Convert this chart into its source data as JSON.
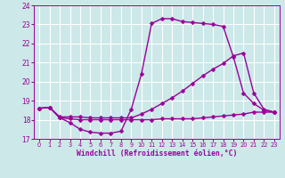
{
  "xlabel": "Windchill (Refroidissement éolien,°C)",
  "bg_color": "#cce8e8",
  "line_color": "#990099",
  "grid_color": "#ffffff",
  "xlim": [
    -0.5,
    23.5
  ],
  "ylim": [
    17,
    24
  ],
  "yticks": [
    17,
    18,
    19,
    20,
    21,
    22,
    23,
    24
  ],
  "xticks": [
    0,
    1,
    2,
    3,
    4,
    5,
    6,
    7,
    8,
    9,
    10,
    11,
    12,
    13,
    14,
    15,
    16,
    17,
    18,
    19,
    20,
    21,
    22,
    23
  ],
  "line1_x": [
    0,
    1,
    2,
    3,
    4,
    5,
    6,
    7,
    8,
    9,
    10,
    11,
    12,
    13,
    14,
    15,
    16,
    17,
    18,
    19,
    20,
    21,
    22,
    23
  ],
  "line1_y": [
    18.6,
    18.65,
    18.1,
    17.85,
    17.5,
    17.35,
    17.3,
    17.3,
    17.4,
    18.55,
    20.4,
    23.05,
    23.3,
    23.3,
    23.15,
    23.1,
    23.05,
    23.0,
    22.9,
    21.3,
    19.4,
    18.85,
    18.5,
    18.4
  ],
  "line2_x": [
    0,
    1,
    2,
    3,
    4,
    5,
    6,
    7,
    8,
    9,
    10,
    11,
    12,
    13,
    14,
    15,
    16,
    17,
    18,
    19,
    20,
    21,
    22,
    23
  ],
  "line2_y": [
    18.6,
    18.65,
    18.15,
    18.15,
    18.15,
    18.1,
    18.1,
    18.1,
    18.1,
    18.1,
    18.3,
    18.55,
    18.85,
    19.15,
    19.5,
    19.9,
    20.3,
    20.65,
    20.95,
    21.35,
    21.5,
    19.4,
    18.55,
    18.4
  ],
  "line3_x": [
    0,
    1,
    2,
    3,
    4,
    5,
    6,
    7,
    8,
    9,
    10,
    11,
    12,
    13,
    14,
    15,
    16,
    17,
    18,
    19,
    20,
    21,
    22,
    23
  ],
  "line3_y": [
    18.6,
    18.65,
    18.1,
    18.05,
    18.0,
    18.0,
    18.0,
    18.0,
    18.0,
    18.0,
    18.0,
    18.0,
    18.05,
    18.05,
    18.05,
    18.05,
    18.1,
    18.15,
    18.2,
    18.25,
    18.3,
    18.4,
    18.4,
    18.4
  ],
  "markersize": 2.5,
  "linewidth": 1.0
}
